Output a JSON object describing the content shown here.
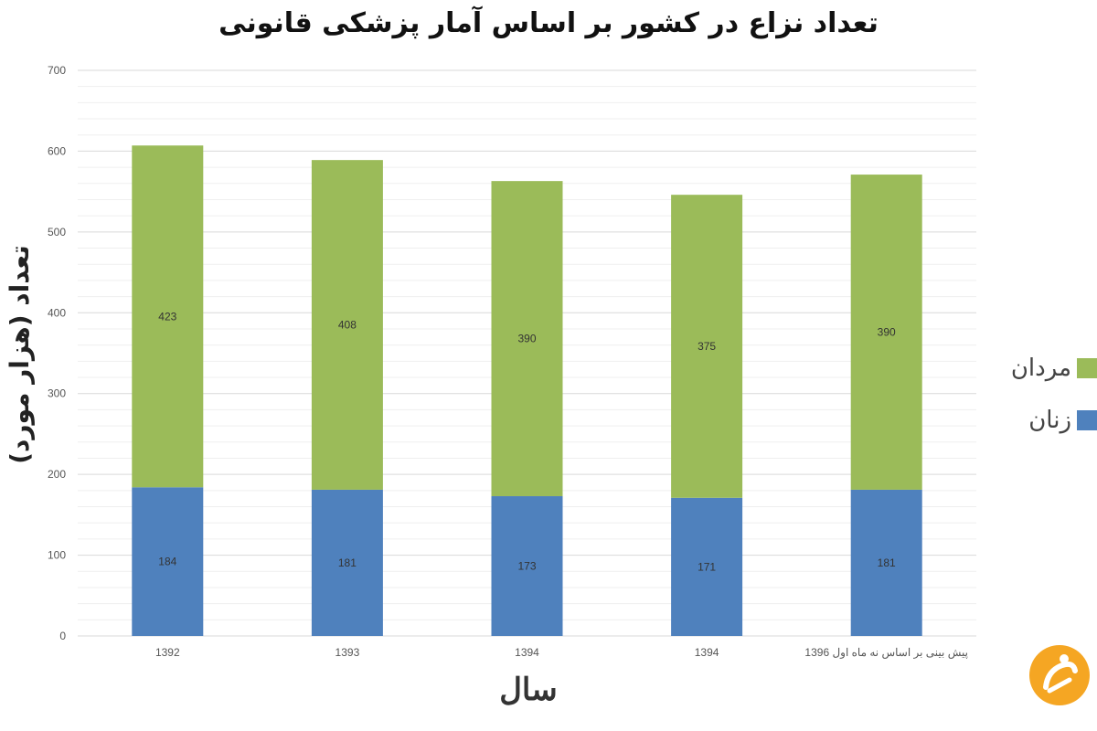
{
  "chart_data": {
    "type": "bar",
    "stacked": true,
    "title": "تعداد نزاع در کشور بر اساس آمار پزشکی قانونی",
    "xlabel": "سال",
    "ylabel": "تعداد (هزار مورد)",
    "categories": [
      "1392",
      "1393",
      "1394",
      "1394",
      "پیش بینی بر اساس نه ماه اول 1396"
    ],
    "series": [
      {
        "name": "زنان",
        "color": "#4F81BD",
        "values": [
          184,
          181,
          173,
          171,
          181
        ]
      },
      {
        "name": "مردان",
        "color": "#9BBB59",
        "values": [
          423,
          408,
          390,
          375,
          390
        ]
      }
    ],
    "ylim": [
      0,
      700
    ],
    "yticks": [
      "0",
      "100",
      "200",
      "300",
      "400",
      "500",
      "600",
      "700"
    ],
    "grid": true,
    "legend_position": "right"
  },
  "logo": {
    "icon": "orange-circle-logo-icon",
    "color": "#F5A623"
  }
}
